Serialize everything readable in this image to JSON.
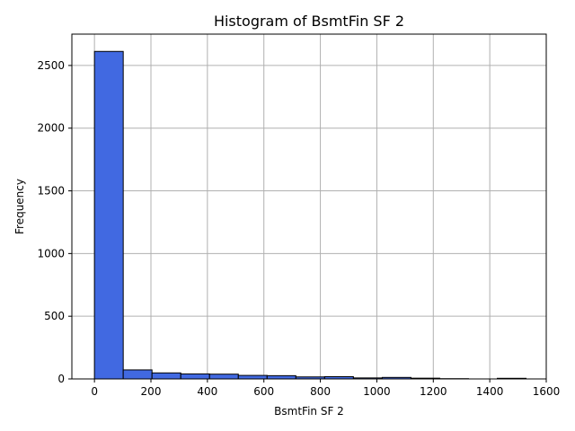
{
  "chart_data": {
    "type": "bar",
    "title": "Histogram of BsmtFin SF 2",
    "xlabel": "BsmtFin SF 2",
    "ylabel": "Frequency",
    "xlim": [
      -80,
      1600
    ],
    "ylim": [
      0,
      2750
    ],
    "grid": true,
    "x_ticks": [
      0,
      200,
      400,
      600,
      800,
      1000,
      1200,
      1400,
      1600
    ],
    "y_ticks": [
      0,
      500,
      1000,
      1500,
      2000,
      2500
    ],
    "bin_edges": [
      0,
      101.9,
      203.8,
      305.7,
      407.6,
      509.5,
      611.4,
      713.3,
      815.2,
      917.1,
      1019,
      1120.9,
      1222.8,
      1324.7,
      1426.6,
      1528.5
    ],
    "values": [
      2612,
      72,
      48,
      40,
      38,
      28,
      26,
      16,
      18,
      8,
      12,
      6,
      2,
      0,
      5
    ],
    "colors": {
      "bar_fill": "#4169e1",
      "bar_edge": "#000000",
      "grid": "#b0b0b0",
      "axes": "#000000"
    }
  }
}
